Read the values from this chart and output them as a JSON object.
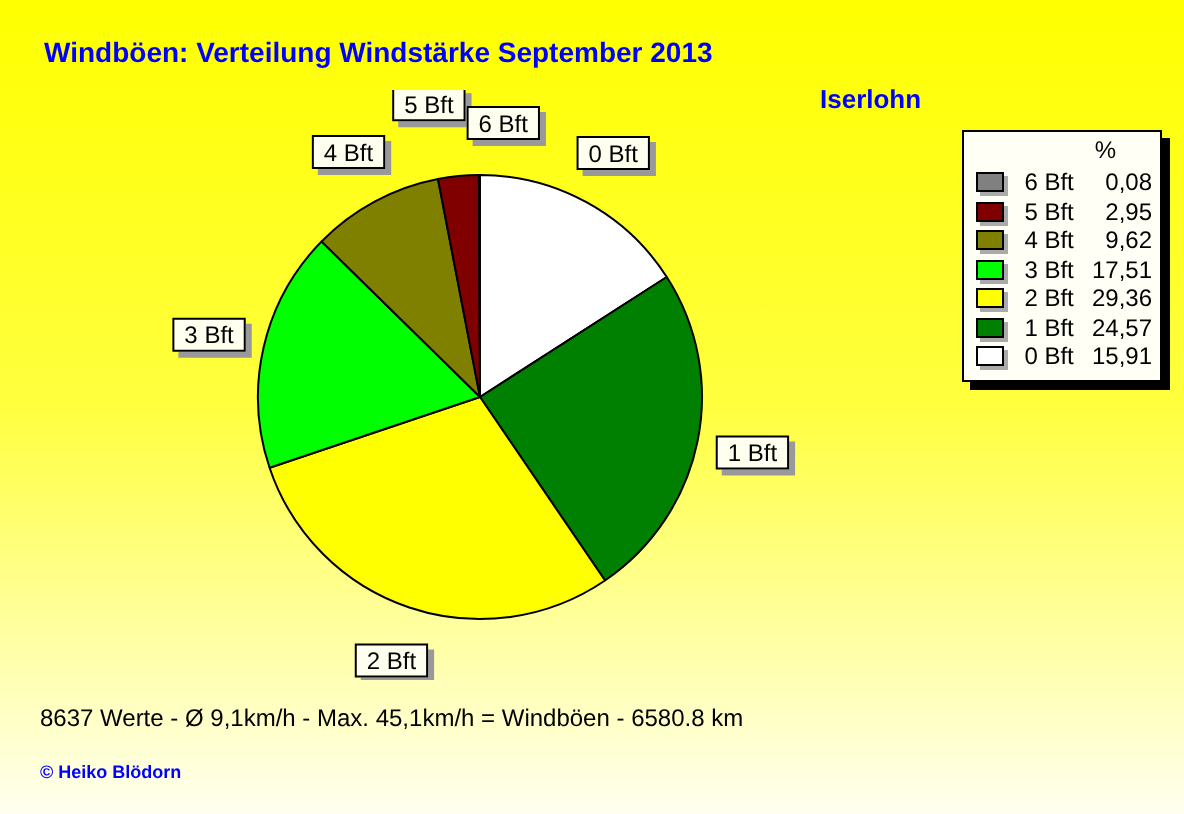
{
  "chart_data": {
    "type": "pie",
    "title": "Windböen: Verteilung Windstärke  September 2013",
    "subtitle": "Iserlohn",
    "categories": [
      "0 Bft",
      "1 Bft",
      "2 Bft",
      "3 Bft",
      "4 Bft",
      "5 Bft",
      "6 Bft"
    ],
    "values": [
      15.91,
      24.57,
      29.36,
      17.51,
      9.62,
      2.95,
      0.08
    ],
    "colors": [
      "#ffffff",
      "#008000",
      "#ffff00",
      "#00ff00",
      "#808000",
      "#800000",
      "#808080"
    ],
    "value_labels": [
      "15,91",
      "24,57",
      "29,36",
      "17,51",
      "9,62",
      "2,95",
      "0,08"
    ],
    "legend": "top right",
    "legend_title": "%",
    "annotations": [
      "8637 Werte   -   Ø 9,1km/h  -  Max. 45,1km/h = Windböen   -   6580.8 km",
      "© Heiko Blödorn"
    ]
  }
}
